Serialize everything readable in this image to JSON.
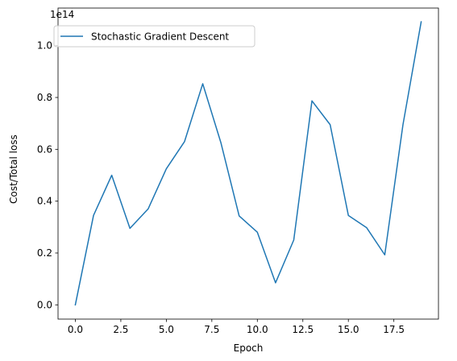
{
  "chart_data": {
    "type": "line",
    "xlabel": "Epoch",
    "ylabel": "Cost/Total loss",
    "offset_label": "1e14",
    "y_scale_factor": 100000000000000.0,
    "xlim": [
      -0.95,
      19.95
    ],
    "ylim": [
      -0.055,
      1.145
    ],
    "x_ticks": [
      0.0,
      2.5,
      5.0,
      7.5,
      10.0,
      12.5,
      15.0,
      17.5
    ],
    "x_tick_labels": [
      "0.0",
      "2.5",
      "5.0",
      "7.5",
      "10.0",
      "12.5",
      "15.0",
      "17.5"
    ],
    "y_ticks": [
      0.0,
      0.2,
      0.4,
      0.6,
      0.8,
      1.0
    ],
    "y_tick_labels": [
      "0.0",
      "0.2",
      "0.4",
      "0.6",
      "0.8",
      "1.0"
    ],
    "grid": false,
    "legend_position": "top-left",
    "series": [
      {
        "name": "Stochastic Gradient Descent",
        "color": "#1f77b4",
        "x": [
          0,
          1,
          2,
          3,
          4,
          5,
          6,
          7,
          8,
          9,
          10,
          11,
          12,
          13,
          14,
          15,
          16,
          17,
          18,
          19
        ],
        "y": [
          0.0,
          0.345,
          0.5,
          0.295,
          0.37,
          0.525,
          0.63,
          0.853,
          0.625,
          0.343,
          0.28,
          0.085,
          0.25,
          0.787,
          0.695,
          0.345,
          0.298,
          0.193,
          0.695,
          1.092
        ]
      }
    ]
  }
}
